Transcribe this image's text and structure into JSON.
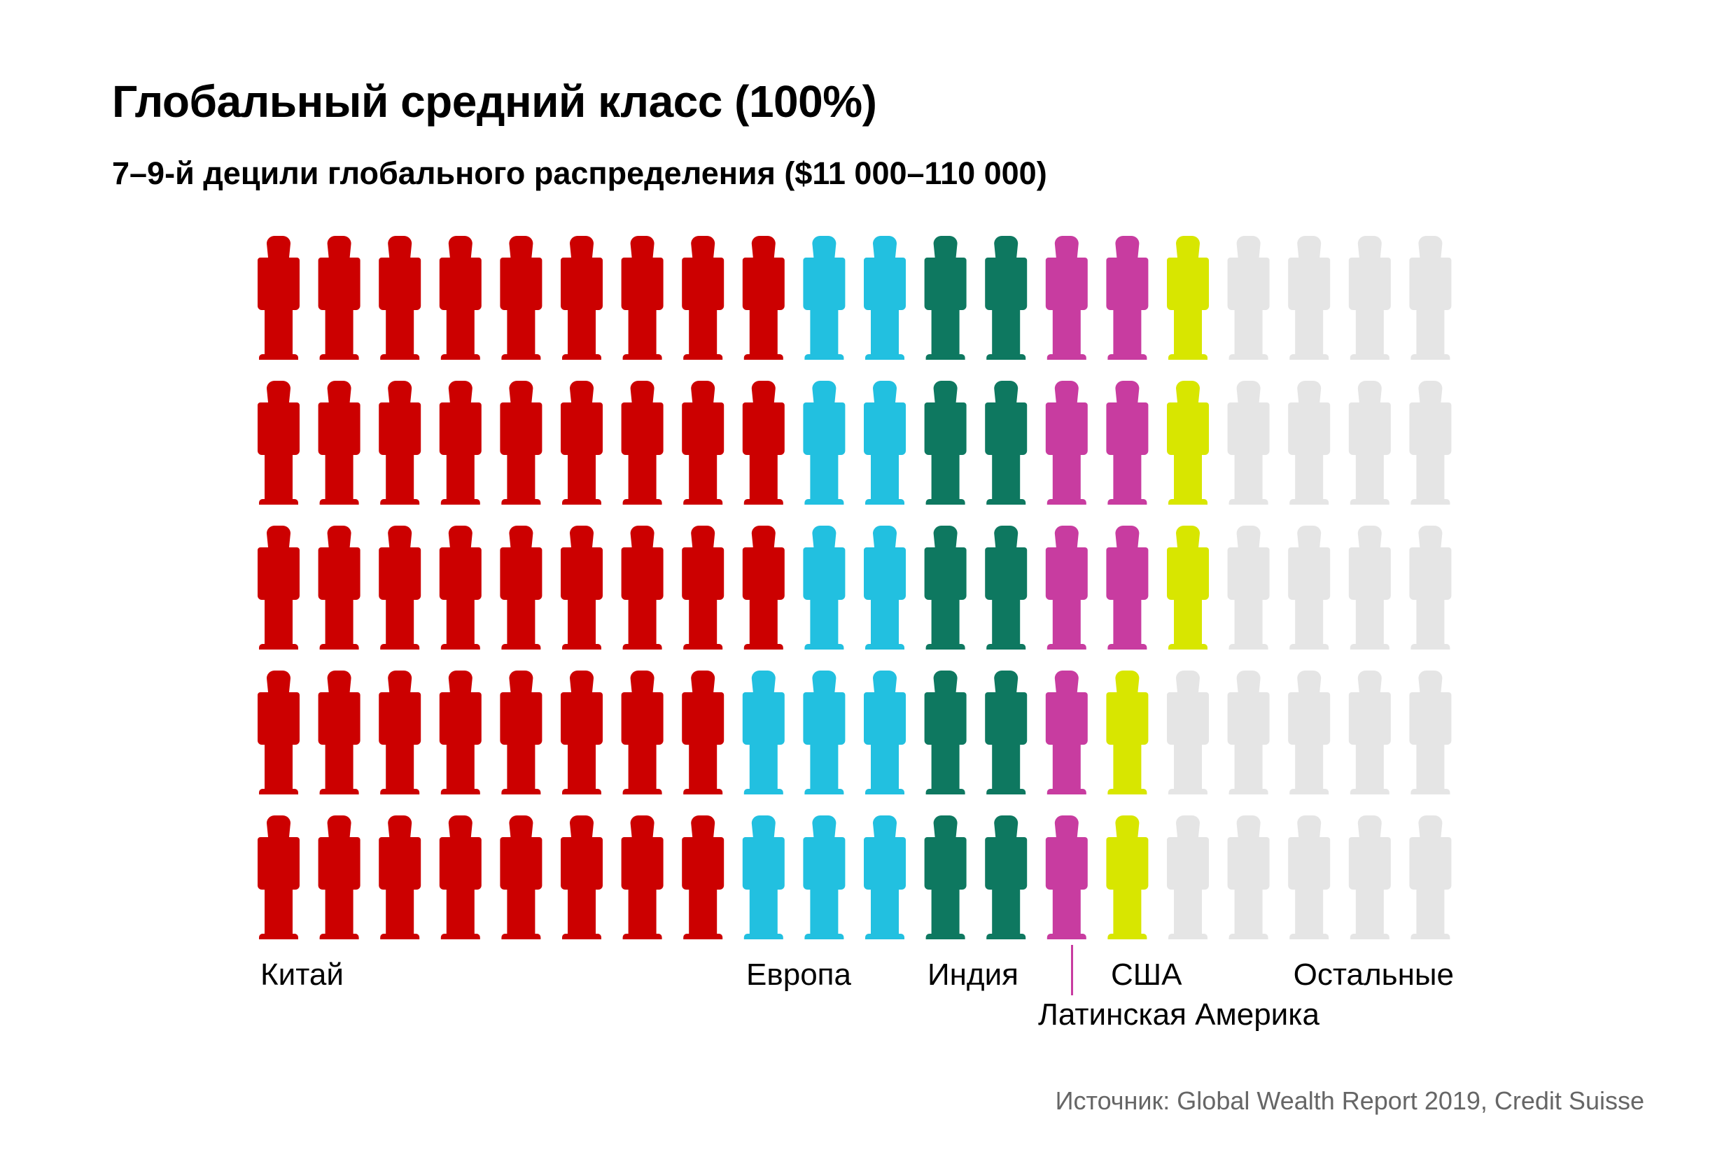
{
  "title": "Глобальный средний класс (100%)",
  "subtitle": "7–9-й децили глобального распределения ($11 000–110 000)",
  "source": "Источник: Global Wealth Report 2019, Credit Suisse",
  "chart_data": {
    "type": "pictogram",
    "title": "Глобальный средний класс (100%)",
    "subtitle": "7–9-й децили глобального распределения ($11 000–110 000)",
    "unit": "1 figure = 1%",
    "categories": [
      {
        "key": "china",
        "label": "Китай",
        "value": 43,
        "color": "#CC0000"
      },
      {
        "key": "europe",
        "label": "Европа",
        "value": 12,
        "color": "#22C0E0"
      },
      {
        "key": "india",
        "label": "Индия",
        "value": 10,
        "color": "#0E7860"
      },
      {
        "key": "latam",
        "label": "Латинская Америка",
        "value": 8,
        "color": "#C83CA0"
      },
      {
        "key": "usa",
        "label": "США",
        "value": 5,
        "color": "#D8E600"
      },
      {
        "key": "other",
        "label": "Остальные",
        "value": 22,
        "color": "#E5E5E5"
      }
    ],
    "rows": [
      {
        "china": 9,
        "europe": 2,
        "india": 2,
        "latam": 2,
        "usa": 1,
        "other": 4
      },
      {
        "china": 9,
        "europe": 2,
        "india": 2,
        "latam": 2,
        "usa": 1,
        "other": 4
      },
      {
        "china": 9,
        "europe": 2,
        "india": 2,
        "latam": 2,
        "usa": 1,
        "other": 4
      },
      {
        "china": 8,
        "europe": 3,
        "india": 2,
        "latam": 1,
        "usa": 1,
        "other": 5
      },
      {
        "china": 8,
        "europe": 3,
        "india": 2,
        "latam": 1,
        "usa": 1,
        "other": 5
      }
    ]
  }
}
